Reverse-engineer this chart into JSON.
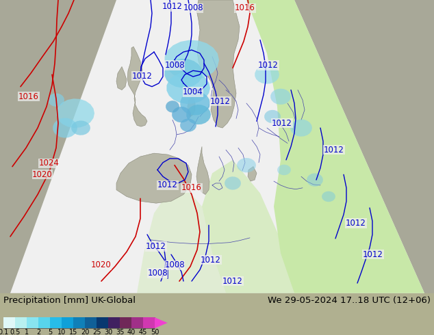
{
  "title_left": "Precipitation [mm] UK-Global",
  "title_right": "We 29-05-2024 17..18 UTC (12+06)",
  "colorbar_labels": [
    "0.1",
    "0.5",
    "1",
    "2",
    "5",
    "10",
    "15",
    "20",
    "25",
    "30",
    "35",
    "40",
    "45",
    "50"
  ],
  "fig_width": 6.34,
  "fig_height": 4.9,
  "dpi": 100,
  "outer_bg": "#b0b090",
  "domain_color": "#eeeeee",
  "green_color": "#c8e8a8",
  "cb_colors": [
    "#e0f8f8",
    "#b8f0f0",
    "#88e4f0",
    "#58d4ec",
    "#28bce8",
    "#10a0d8",
    "#1080b8",
    "#106098",
    "#083870",
    "#402060",
    "#702858",
    "#a03088",
    "#d038b0",
    "#f040d0"
  ],
  "land_gray": "#aaaaaa",
  "land_tan_dark": "#c8b878",
  "land_tan_light": "#d4c890"
}
